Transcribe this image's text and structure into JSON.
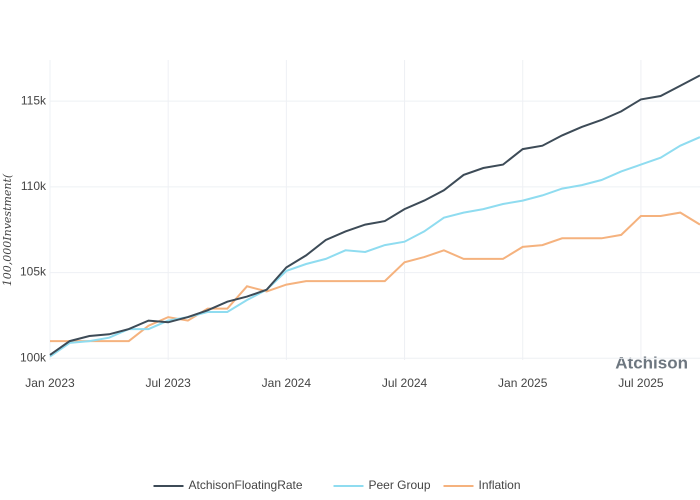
{
  "chart_data": {
    "type": "line",
    "y_label": "100,000Investment(",
    "watermark": "Atchison",
    "x": [
      "2023-01",
      "2023-02",
      "2023-03",
      "2023-04",
      "2023-05",
      "2023-06",
      "2023-07",
      "2023-08",
      "2023-09",
      "2023-10",
      "2023-11",
      "2023-12",
      "2024-01",
      "2024-02",
      "2024-03",
      "2024-04",
      "2024-05",
      "2024-06",
      "2024-07",
      "2024-08",
      "2024-09",
      "2024-10",
      "2024-11",
      "2024-12",
      "2025-01",
      "2025-02",
      "2025-03",
      "2025-04",
      "2025-05",
      "2025-06",
      "2025-07",
      "2025-08",
      "2025-09",
      "2025-10"
    ],
    "xticks": [
      {
        "value": "2023-01",
        "label": "Jan 2023"
      },
      {
        "value": "2023-07",
        "label": "Jul 2023"
      },
      {
        "value": "2024-01",
        "label": "Jan 2024"
      },
      {
        "value": "2024-07",
        "label": "Jul 2024"
      },
      {
        "value": "2025-01",
        "label": "Jan 2025"
      },
      {
        "value": "2025-07",
        "label": "Jul 2025"
      }
    ],
    "ylim": [
      99900,
      117400
    ],
    "yticks": [
      {
        "value": 100000,
        "label": "100k"
      },
      {
        "value": 105000,
        "label": "105k"
      },
      {
        "value": 110000,
        "label": "110k"
      },
      {
        "value": 115000,
        "label": "115k"
      }
    ],
    "grid": true,
    "legend_position": "bottom",
    "series": [
      {
        "name": "AtchisonFloatingRate",
        "color": "#3d4b57",
        "values": [
          100200,
          101000,
          101300,
          101400,
          101700,
          102200,
          102100,
          102400,
          102800,
          103300,
          103600,
          104000,
          105300,
          106000,
          106900,
          107400,
          107800,
          108000,
          108700,
          109200,
          109800,
          110700,
          111100,
          111300,
          112200,
          112400,
          113000,
          113500,
          113900,
          114400,
          115100,
          115300,
          115900,
          116500
        ]
      },
      {
        "name": "Peer Group",
        "color": "#8fdcf0",
        "values": [
          100100,
          100900,
          101000,
          101200,
          101700,
          101700,
          102200,
          102400,
          102700,
          102700,
          103400,
          104000,
          105100,
          105500,
          105800,
          106300,
          106200,
          106600,
          106800,
          107400,
          108200,
          108500,
          108700,
          109000,
          109200,
          109500,
          109900,
          110100,
          110400,
          110900,
          111300,
          111700,
          112400,
          112900
        ]
      },
      {
        "name": "Inflation",
        "color": "#f5b27e",
        "values": [
          101000,
          101000,
          101000,
          101000,
          101000,
          101900,
          102400,
          102200,
          102900,
          102900,
          104200,
          103900,
          104300,
          104500,
          104500,
          104500,
          104500,
          104500,
          105600,
          105900,
          106300,
          105800,
          105800,
          105800,
          106500,
          106600,
          107000,
          107000,
          107000,
          107200,
          108300,
          108300,
          108500,
          107800
        ]
      }
    ]
  }
}
